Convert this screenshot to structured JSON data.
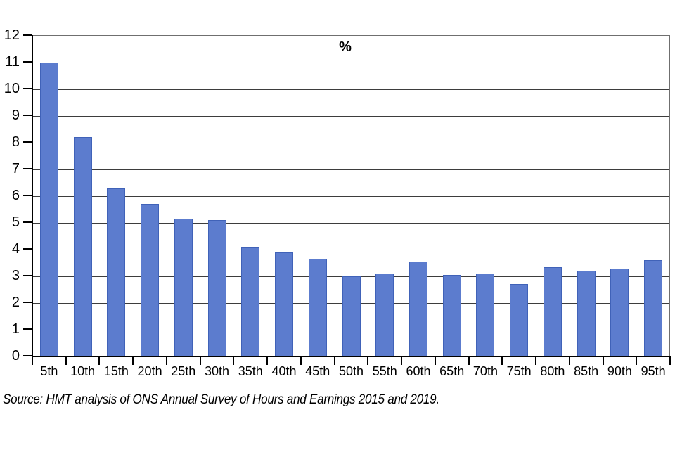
{
  "chart_data": {
    "type": "bar",
    "title": "%",
    "categories": [
      "5th",
      "10th",
      "15th",
      "20th",
      "25th",
      "30th",
      "35th",
      "40th",
      "45th",
      "50th",
      "55th",
      "60th",
      "65th",
      "70th",
      "75th",
      "80th",
      "85th",
      "90th",
      "95th"
    ],
    "values": [
      11.0,
      8.2,
      6.3,
      5.7,
      5.15,
      5.1,
      4.1,
      3.9,
      3.65,
      3.0,
      3.1,
      3.55,
      3.05,
      3.1,
      2.7,
      3.35,
      3.2,
      3.3,
      3.6
    ],
    "xlabel": "",
    "ylabel": "",
    "ylim": [
      0,
      12
    ],
    "yticks": [
      0,
      1,
      2,
      3,
      4,
      5,
      6,
      7,
      8,
      9,
      10,
      11,
      12
    ],
    "grid": true,
    "legend": false,
    "bar_color": "#5C7CCE",
    "bar_border_color": "#4062B8",
    "gridline_color": "#3d3d3d",
    "axis_color": "#000000",
    "frame_color": "#6f6f6f"
  },
  "footer": {
    "source": "Source: HMT analysis of ONS Annual Survey of Hours and Earnings 2015 and 2019."
  }
}
